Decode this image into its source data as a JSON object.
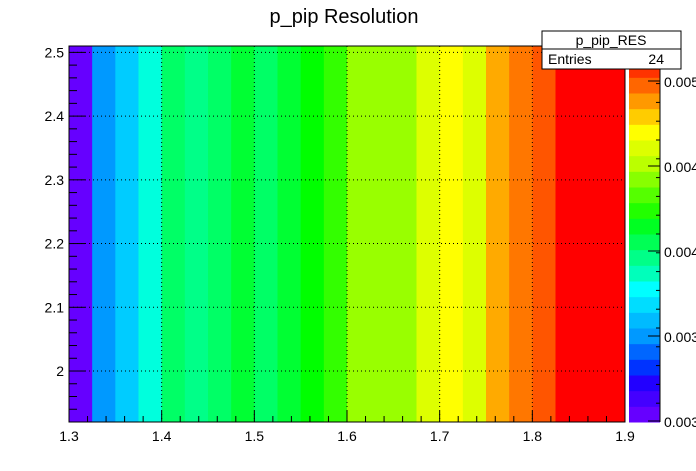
{
  "chart_data": {
    "type": "heatmap",
    "title": "p_pip Resolution",
    "xlabel": "",
    "ylabel": "",
    "xlim": [
      1.3,
      1.9
    ],
    "ylim": [
      1.92,
      2.51
    ],
    "grid": true,
    "x_ticks": [
      "1.3",
      "1.4",
      "1.5",
      "1.6",
      "1.7",
      "1.8",
      "1.9"
    ],
    "y_ticks": [
      "2",
      "2.1",
      "2.2",
      "2.3",
      "2.4",
      "2.5"
    ],
    "colorbar_ticks": [
      "0.003",
      "0.003",
      "0.004",
      "0.004",
      "0.005"
    ],
    "stats_box": {
      "name": "p_pip_RES",
      "entries_label": "Entries",
      "entries_value": "24"
    },
    "cells": [
      {
        "x0": 1.3,
        "x1": 1.325,
        "color": "#6600ff"
      },
      {
        "x0": 1.325,
        "x1": 1.35,
        "color": "#0099ff"
      },
      {
        "x0": 1.35,
        "x1": 1.375,
        "color": "#00ccff"
      },
      {
        "x0": 1.375,
        "x1": 1.4,
        "color": "#00ffdd"
      },
      {
        "x0": 1.4,
        "x1": 1.425,
        "color": "#00ff66"
      },
      {
        "x0": 1.425,
        "x1": 1.45,
        "color": "#00ff88"
      },
      {
        "x0": 1.45,
        "x1": 1.475,
        "color": "#00ff66"
      },
      {
        "x0": 1.475,
        "x1": 1.5,
        "color": "#00ff33"
      },
      {
        "x0": 1.5,
        "x1": 1.525,
        "color": "#00ff66"
      },
      {
        "x0": 1.525,
        "x1": 1.55,
        "color": "#00ff33"
      },
      {
        "x0": 1.55,
        "x1": 1.575,
        "color": "#00ff00"
      },
      {
        "x0": 1.575,
        "x1": 1.6,
        "color": "#33ff00"
      },
      {
        "x0": 1.6,
        "x1": 1.675,
        "color": "#99ff00"
      },
      {
        "x0": 1.675,
        "x1": 1.7,
        "color": "#ddff00"
      },
      {
        "x0": 1.7,
        "x1": 1.725,
        "color": "#ffff00"
      },
      {
        "x0": 1.725,
        "x1": 1.75,
        "color": "#ddff00"
      },
      {
        "x0": 1.75,
        "x1": 1.775,
        "color": "#ffaa00"
      },
      {
        "x0": 1.775,
        "x1": 1.8,
        "color": "#ff7700"
      },
      {
        "x0": 1.8,
        "x1": 1.825,
        "color": "#ff5500"
      },
      {
        "x0": 1.825,
        "x1": 1.9,
        "color": "#ff0000"
      }
    ],
    "palette": [
      "#6600ff",
      "#4400ff",
      "#2200ff",
      "#0033ff",
      "#0066ff",
      "#0099ff",
      "#00bbff",
      "#00ddff",
      "#00ffff",
      "#00ffbb",
      "#00ff88",
      "#00ff55",
      "#00ff22",
      "#22ff00",
      "#55ff00",
      "#88ff00",
      "#bbff00",
      "#ddff00",
      "#ffff00",
      "#ffcc00",
      "#ff9900",
      "#ff6600",
      "#ff3300",
      "#ff0000"
    ]
  }
}
